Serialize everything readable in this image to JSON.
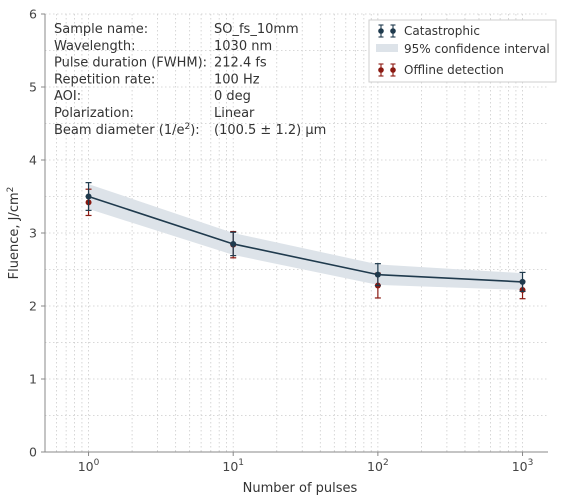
{
  "chart_data": {
    "type": "scatter",
    "xlabel": "Number of pulses",
    "ylabel": "Fluence, J/cm",
    "ylabel_sup": "2",
    "x_scale": "log",
    "xlim": [
      0.5,
      1500
    ],
    "ylim": [
      0,
      6
    ],
    "x_ticks": [
      {
        "value": 1,
        "base": "10",
        "exp": "0"
      },
      {
        "value": 10,
        "base": "10",
        "exp": "1"
      },
      {
        "value": 100,
        "base": "10",
        "exp": "2"
      },
      {
        "value": 1000,
        "base": "10",
        "exp": "3"
      }
    ],
    "y_ticks": [
      0,
      1,
      2,
      3,
      4,
      5,
      6
    ],
    "grid": true,
    "legend_position": "top-right",
    "colors": {
      "catastrophic": "#1f3a4d",
      "offline": "#8b1a12",
      "band": "#dde3e9",
      "axis": "#888888",
      "grid": "#cccccc"
    },
    "series": [
      {
        "name": "Catastrophic",
        "x": [
          1,
          10,
          100,
          1000
        ],
        "y": [
          3.5,
          2.85,
          2.43,
          2.33
        ],
        "err": [
          0.19,
          0.16,
          0.15,
          0.13
        ],
        "line": true
      },
      {
        "name": "Offline detection",
        "x": [
          1,
          10,
          100,
          1000
        ],
        "y": [
          3.42,
          2.84,
          2.28,
          2.22
        ],
        "err": [
          0.18,
          0.18,
          0.17,
          0.12
        ],
        "line": false
      }
    ],
    "band": {
      "name": "95% confidence interval",
      "x": [
        1,
        10,
        100,
        1000
      ],
      "lower": [
        3.33,
        2.7,
        2.29,
        2.22
      ],
      "upper": [
        3.67,
        3.0,
        2.57,
        2.45
      ]
    },
    "info": [
      {
        "key": "Sample name:",
        "value": "SO_fs_10mm"
      },
      {
        "key": "Wavelength:",
        "value": "1030 nm"
      },
      {
        "key": "Pulse duration (FWHM):",
        "value": "212.4 fs"
      },
      {
        "key": "Repetition rate:",
        "value": "100 Hz"
      },
      {
        "key": "AOI:",
        "value": "0 deg"
      },
      {
        "key": "Polarization:",
        "value": "Linear"
      },
      {
        "key": "Beam diameter (1/e",
        "key_sup": "2",
        "key_tail": "):",
        "value": "(100.5 ± 1.2) µm"
      }
    ]
  }
}
